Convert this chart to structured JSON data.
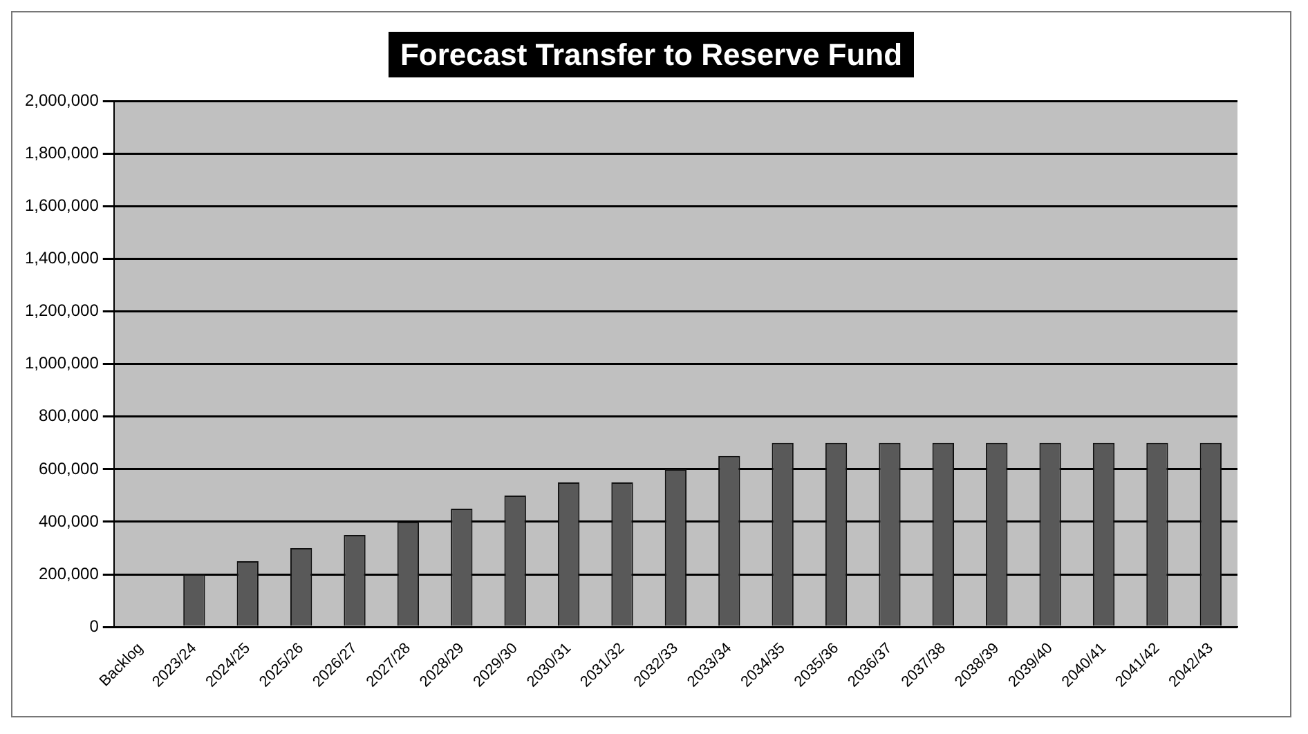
{
  "chart_data": {
    "type": "bar",
    "title": "Forecast Transfer to Reserve Fund",
    "categories": [
      "Backlog",
      "2023/24",
      "2024/25",
      "2025/26",
      "2026/27",
      "2027/28",
      "2028/29",
      "2029/30",
      "2030/31",
      "2031/32",
      "2032/33",
      "2033/34",
      "2034/35",
      "2035/36",
      "2036/37",
      "2037/38",
      "2038/39",
      "2039/40",
      "2040/41",
      "2041/42",
      "2042/43"
    ],
    "values": [
      null,
      200000,
      250000,
      300000,
      350000,
      400000,
      450000,
      500000,
      550000,
      550000,
      600000,
      650000,
      700000,
      700000,
      700000,
      700000,
      700000,
      700000,
      700000,
      700000,
      700000
    ],
    "color": "#595959",
    "ylim": [
      0,
      2000000
    ],
    "yticks": [
      0,
      {
        "value": 200000,
        "label": "200,000"
      },
      {
        "value": 400000,
        "label": "400,000"
      },
      {
        "value": 600000,
        "label": "600,000"
      },
      {
        "value": 800000,
        "label": "800,000"
      },
      {
        "value": 1000000,
        "label": "1,000,000"
      },
      {
        "value": 1200000,
        "label": "1,200,000"
      },
      {
        "value": 1400000,
        "label": "1,400,000"
      },
      {
        "value": 1600000,
        "label": "1,600,000"
      },
      {
        "value": 1800000,
        "label": "1,800,000"
      },
      {
        "value": 2000000,
        "label": "2,000,000"
      }
    ],
    "grid": "y",
    "legend": false
  }
}
